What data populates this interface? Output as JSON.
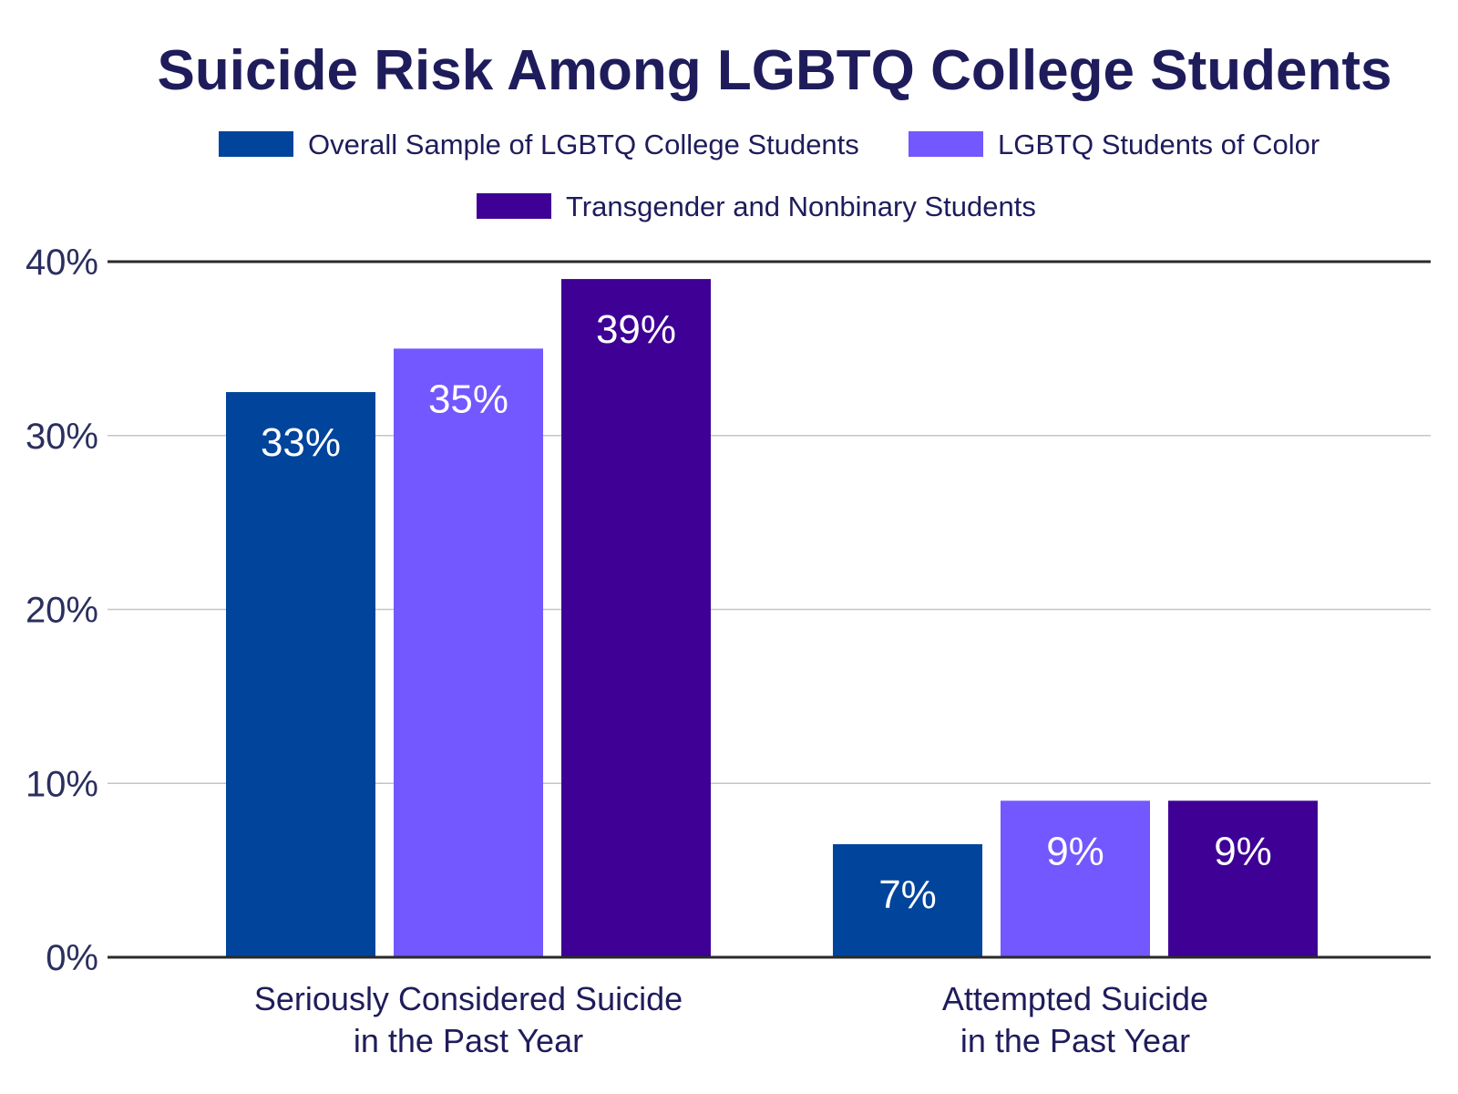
{
  "chart_data": {
    "type": "bar",
    "title": "Suicide Risk Among LGBTQ College Students",
    "xlabel": "",
    "ylabel": "",
    "ylim": [
      0,
      40
    ],
    "yticks": [
      0,
      10,
      20,
      30,
      40
    ],
    "ytick_labels": [
      "0%",
      "10%",
      "20%",
      "30%",
      "40%"
    ],
    "categories": [
      [
        "Seriously Considered Suicide",
        "in the Past Year"
      ],
      [
        "Attempted Suicide",
        "in the Past Year"
      ]
    ],
    "series": [
      {
        "name": "Overall Sample of LGBTQ College Students",
        "color": "#01449b",
        "values": [
          32.5,
          6.5
        ],
        "labels": [
          "33%",
          "7%"
        ]
      },
      {
        "name": "LGBTQ Students of Color",
        "color": "#7357ff",
        "values": [
          35,
          9
        ],
        "labels": [
          "35%",
          "9%"
        ]
      },
      {
        "name": "Transgender and Nonbinary Students",
        "color": "#3e0095",
        "values": [
          39,
          9
        ],
        "labels": [
          "39%",
          "9%"
        ]
      }
    ],
    "grid": true,
    "legend_position": "top"
  }
}
